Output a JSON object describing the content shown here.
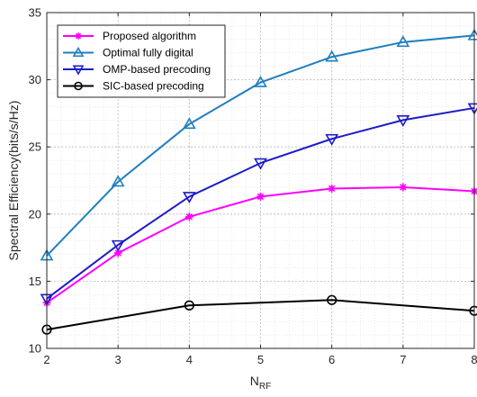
{
  "chart_data": {
    "type": "line",
    "title": "",
    "xlabel_base": "N",
    "xlabel_sub": "RF",
    "ylabel": "Spectral Efficiency(bits/s/Hz)",
    "xlim": [
      2,
      8
    ],
    "ylim": [
      10,
      35
    ],
    "x_ticks": [
      2,
      3,
      4,
      5,
      6,
      7,
      8
    ],
    "y_ticks": [
      10,
      15,
      20,
      25,
      30,
      35
    ],
    "grid": true,
    "legend_position": "top-left",
    "series": [
      {
        "name": "Proposed algorithm",
        "color": "#ff00ff",
        "marker": "asterisk",
        "x": [
          2,
          3,
          4,
          5,
          6,
          7,
          8
        ],
        "y": [
          13.4,
          17.1,
          19.8,
          21.3,
          21.9,
          22.0,
          21.7
        ]
      },
      {
        "name": "Optimal fully digital",
        "color": "#1f7fbf",
        "marker": "triangle-up",
        "x": [
          2,
          3,
          4,
          5,
          6,
          7,
          8
        ],
        "y": [
          16.9,
          22.4,
          26.7,
          29.8,
          31.7,
          32.8,
          33.3
        ]
      },
      {
        "name": "OMP-based precoding",
        "color": "#1c1cc8",
        "marker": "triangle-down",
        "x": [
          2,
          3,
          4,
          5,
          6,
          7,
          8
        ],
        "y": [
          13.7,
          17.7,
          21.3,
          23.8,
          25.6,
          27.0,
          27.9
        ]
      },
      {
        "name": "SIC-based precoding",
        "color": "#000000",
        "marker": "circle",
        "x": [
          2,
          4,
          6,
          8
        ],
        "y": [
          11.4,
          13.2,
          13.6,
          12.8
        ]
      }
    ]
  }
}
